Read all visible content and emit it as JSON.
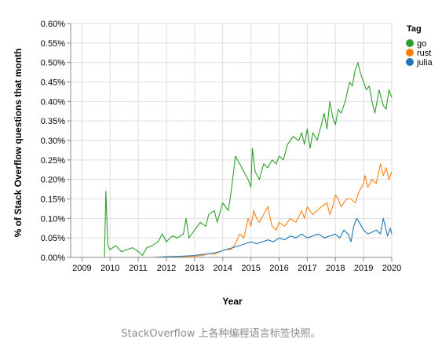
{
  "caption": "StackOverflow 上各种编程语言标签快照。",
  "chart_data": {
    "type": "line",
    "xlabel": "Year",
    "ylabel": "% of Stack Overflow questions that month",
    "xlim": [
      2008.6,
      2020.0
    ],
    "ylim": [
      0,
      0.6
    ],
    "x_ticks": [
      "2009",
      "2010",
      "2011",
      "2012",
      "2013",
      "2014",
      "2015",
      "2016",
      "2017",
      "2018",
      "2019",
      "2020"
    ],
    "y_ticks": [
      "0.00%",
      "0.05%",
      "0.10%",
      "0.15%",
      "0.20%",
      "0.25%",
      "0.30%",
      "0.35%",
      "0.40%",
      "0.45%",
      "0.50%",
      "0.55%",
      "0.60%"
    ],
    "grid": true,
    "legend": {
      "title": "Tag",
      "position": "top-right"
    },
    "series": [
      {
        "name": "go",
        "color": "#2ca02c",
        "points": [
          [
            2008.6,
            0
          ],
          [
            2009.0,
            0
          ],
          [
            2009.5,
            0
          ],
          [
            2009.8,
            0
          ],
          [
            2009.85,
            0.17
          ],
          [
            2009.92,
            0.03
          ],
          [
            2010.0,
            0.02
          ],
          [
            2010.2,
            0.03
          ],
          [
            2010.4,
            0.015
          ],
          [
            2010.6,
            0.02
          ],
          [
            2010.8,
            0.025
          ],
          [
            2011.0,
            0.015
          ],
          [
            2011.15,
            0.005
          ],
          [
            2011.3,
            0.025
          ],
          [
            2011.5,
            0.03
          ],
          [
            2011.7,
            0.04
          ],
          [
            2011.85,
            0.06
          ],
          [
            2012.0,
            0.04
          ],
          [
            2012.2,
            0.055
          ],
          [
            2012.4,
            0.05
          ],
          [
            2012.6,
            0.06
          ],
          [
            2012.7,
            0.1
          ],
          [
            2012.8,
            0.05
          ],
          [
            2013.0,
            0.07
          ],
          [
            2013.2,
            0.09
          ],
          [
            2013.4,
            0.08
          ],
          [
            2013.5,
            0.11
          ],
          [
            2013.7,
            0.12
          ],
          [
            2013.8,
            0.09
          ],
          [
            2014.0,
            0.14
          ],
          [
            2014.2,
            0.12
          ],
          [
            2014.3,
            0.17
          ],
          [
            2014.45,
            0.26
          ],
          [
            2014.6,
            0.24
          ],
          [
            2014.75,
            0.22
          ],
          [
            2014.9,
            0.2
          ],
          [
            2015.0,
            0.18
          ],
          [
            2015.05,
            0.28
          ],
          [
            2015.15,
            0.22
          ],
          [
            2015.3,
            0.2
          ],
          [
            2015.45,
            0.24
          ],
          [
            2015.6,
            0.23
          ],
          [
            2015.75,
            0.25
          ],
          [
            2015.9,
            0.24
          ],
          [
            2016.0,
            0.26
          ],
          [
            2016.15,
            0.25
          ],
          [
            2016.3,
            0.29
          ],
          [
            2016.5,
            0.31
          ],
          [
            2016.7,
            0.3
          ],
          [
            2016.8,
            0.32
          ],
          [
            2016.9,
            0.29
          ],
          [
            2017.0,
            0.33
          ],
          [
            2017.1,
            0.28
          ],
          [
            2017.2,
            0.32
          ],
          [
            2017.35,
            0.3
          ],
          [
            2017.5,
            0.34
          ],
          [
            2017.6,
            0.37
          ],
          [
            2017.7,
            0.33
          ],
          [
            2017.8,
            0.4
          ],
          [
            2017.9,
            0.36
          ],
          [
            2018.0,
            0.34
          ],
          [
            2018.1,
            0.38
          ],
          [
            2018.2,
            0.37
          ],
          [
            2018.35,
            0.4
          ],
          [
            2018.5,
            0.45
          ],
          [
            2018.6,
            0.44
          ],
          [
            2018.7,
            0.48
          ],
          [
            2018.8,
            0.5
          ],
          [
            2018.9,
            0.47
          ],
          [
            2019.0,
            0.45
          ],
          [
            2019.1,
            0.43
          ],
          [
            2019.2,
            0.44
          ],
          [
            2019.3,
            0.4
          ],
          [
            2019.4,
            0.37
          ],
          [
            2019.55,
            0.43
          ],
          [
            2019.7,
            0.39
          ],
          [
            2019.8,
            0.38
          ],
          [
            2019.9,
            0.43
          ],
          [
            2020.0,
            0.41
          ]
        ]
      },
      {
        "name": "rust",
        "color": "#ff7f0e",
        "points": [
          [
            2008.6,
            0
          ],
          [
            2012.0,
            0
          ],
          [
            2012.5,
            0.002
          ],
          [
            2013.0,
            0.003
          ],
          [
            2013.3,
            0.005
          ],
          [
            2013.5,
            0.01
          ],
          [
            2013.7,
            0.008
          ],
          [
            2013.9,
            0.015
          ],
          [
            2014.1,
            0.02
          ],
          [
            2014.3,
            0.02
          ],
          [
            2014.45,
            0.035
          ],
          [
            2014.6,
            0.06
          ],
          [
            2014.75,
            0.05
          ],
          [
            2014.9,
            0.1
          ],
          [
            2015.0,
            0.08
          ],
          [
            2015.1,
            0.12
          ],
          [
            2015.2,
            0.1
          ],
          [
            2015.3,
            0.09
          ],
          [
            2015.45,
            0.11
          ],
          [
            2015.6,
            0.13
          ],
          [
            2015.75,
            0.08
          ],
          [
            2015.9,
            0.07
          ],
          [
            2016.0,
            0.09
          ],
          [
            2016.2,
            0.08
          ],
          [
            2016.4,
            0.1
          ],
          [
            2016.6,
            0.09
          ],
          [
            2016.8,
            0.12
          ],
          [
            2016.9,
            0.1
          ],
          [
            2017.0,
            0.13
          ],
          [
            2017.2,
            0.11
          ],
          [
            2017.35,
            0.12
          ],
          [
            2017.5,
            0.13
          ],
          [
            2017.7,
            0.14
          ],
          [
            2017.8,
            0.11
          ],
          [
            2017.9,
            0.13
          ],
          [
            2018.0,
            0.16
          ],
          [
            2018.1,
            0.15
          ],
          [
            2018.2,
            0.13
          ],
          [
            2018.3,
            0.14
          ],
          [
            2018.4,
            0.15
          ],
          [
            2018.55,
            0.15
          ],
          [
            2018.7,
            0.14
          ],
          [
            2018.85,
            0.17
          ],
          [
            2019.0,
            0.19
          ],
          [
            2019.05,
            0.21
          ],
          [
            2019.15,
            0.18
          ],
          [
            2019.3,
            0.2
          ],
          [
            2019.45,
            0.19
          ],
          [
            2019.6,
            0.24
          ],
          [
            2019.7,
            0.21
          ],
          [
            2019.8,
            0.23
          ],
          [
            2019.9,
            0.2
          ],
          [
            2020.0,
            0.22
          ]
        ]
      },
      {
        "name": "julia",
        "color": "#1f77b4",
        "points": [
          [
            2008.6,
            0
          ],
          [
            2011.5,
            0
          ],
          [
            2012.0,
            0.002
          ],
          [
            2012.5,
            0.003
          ],
          [
            2013.0,
            0.005
          ],
          [
            2013.3,
            0.008
          ],
          [
            2013.6,
            0.01
          ],
          [
            2013.9,
            0.015
          ],
          [
            2014.1,
            0.02
          ],
          [
            2014.35,
            0.025
          ],
          [
            2014.6,
            0.03
          ],
          [
            2014.8,
            0.035
          ],
          [
            2015.0,
            0.04
          ],
          [
            2015.2,
            0.035
          ],
          [
            2015.4,
            0.04
          ],
          [
            2015.6,
            0.045
          ],
          [
            2015.8,
            0.04
          ],
          [
            2016.0,
            0.05
          ],
          [
            2016.2,
            0.045
          ],
          [
            2016.4,
            0.055
          ],
          [
            2016.6,
            0.05
          ],
          [
            2016.8,
            0.06
          ],
          [
            2017.0,
            0.05
          ],
          [
            2017.2,
            0.055
          ],
          [
            2017.4,
            0.06
          ],
          [
            2017.6,
            0.05
          ],
          [
            2017.8,
            0.055
          ],
          [
            2018.0,
            0.06
          ],
          [
            2018.15,
            0.05
          ],
          [
            2018.3,
            0.07
          ],
          [
            2018.45,
            0.06
          ],
          [
            2018.55,
            0.04
          ],
          [
            2018.65,
            0.08
          ],
          [
            2018.75,
            0.1
          ],
          [
            2018.85,
            0.09
          ],
          [
            2019.0,
            0.07
          ],
          [
            2019.15,
            0.06
          ],
          [
            2019.3,
            0.065
          ],
          [
            2019.45,
            0.07
          ],
          [
            2019.6,
            0.06
          ],
          [
            2019.7,
            0.1
          ],
          [
            2019.8,
            0.07
          ],
          [
            2019.85,
            0.055
          ],
          [
            2019.95,
            0.075
          ],
          [
            2020.0,
            0.06
          ]
        ]
      }
    ]
  }
}
